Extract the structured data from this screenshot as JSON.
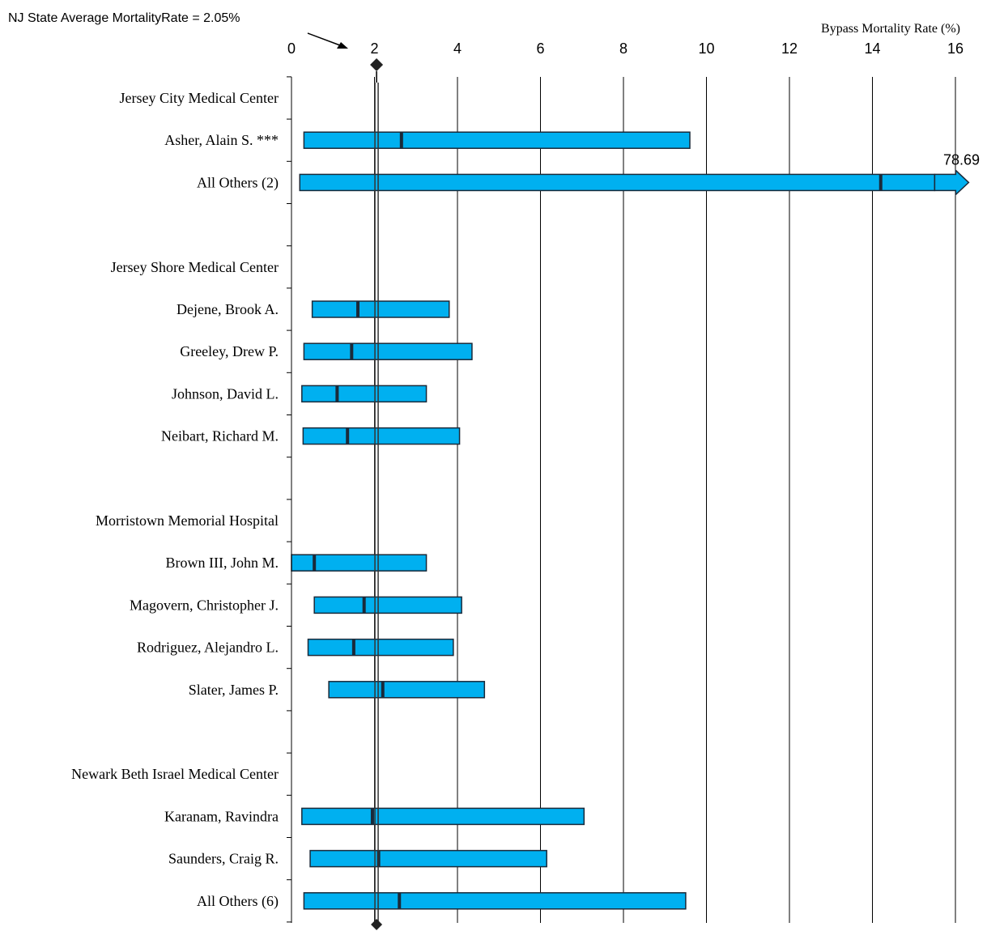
{
  "annotation": {
    "state_average_label": "NJ State Average MortalityRate = 2.05%"
  },
  "chart_data": {
    "type": "bar",
    "orientation": "horizontal",
    "subtype": "confidence-interval",
    "xlabel": "Bypass Mortality Rate (%)",
    "xlim": [
      0,
      16
    ],
    "xticks": [
      0,
      2,
      4,
      6,
      8,
      10,
      12,
      14,
      16
    ],
    "grid": true,
    "reference_value": 2.05,
    "rows": [
      {
        "label": "Jersey City Medical Center",
        "kind": "hospital"
      },
      {
        "label": "Asher, Alain S. ***",
        "kind": "surgeon",
        "low": 0.3,
        "rate": 2.65,
        "high": 9.6
      },
      {
        "label": "All Others (2)",
        "kind": "surgeon",
        "low": 0.2,
        "rate": 14.2,
        "high": 78.69,
        "high_label": "78.69"
      },
      {
        "label": "",
        "kind": "spacer"
      },
      {
        "label": "Jersey Shore Medical Center",
        "kind": "hospital"
      },
      {
        "label": "Dejene, Brook A.",
        "kind": "surgeon",
        "low": 0.5,
        "rate": 1.6,
        "high": 3.8
      },
      {
        "label": "Greeley, Drew P.",
        "kind": "surgeon",
        "low": 0.3,
        "rate": 1.45,
        "high": 4.35
      },
      {
        "label": "Johnson, David L.",
        "kind": "surgeon",
        "low": 0.25,
        "rate": 1.1,
        "high": 3.25
      },
      {
        "label": "Neibart, Richard M.",
        "kind": "surgeon",
        "low": 0.28,
        "rate": 1.35,
        "high": 4.05
      },
      {
        "label": "",
        "kind": "spacer"
      },
      {
        "label": "Morristown Memorial Hospital",
        "kind": "hospital"
      },
      {
        "label": "Brown III, John M.",
        "kind": "surgeon",
        "low": 0.0,
        "rate": 0.55,
        "high": 3.25
      },
      {
        "label": "Magovern, Christopher J.",
        "kind": "surgeon",
        "low": 0.55,
        "rate": 1.75,
        "high": 4.1
      },
      {
        "label": "Rodriguez, Alejandro L.",
        "kind": "surgeon",
        "low": 0.4,
        "rate": 1.5,
        "high": 3.9
      },
      {
        "label": "Slater, James P.",
        "kind": "surgeon",
        "low": 0.9,
        "rate": 2.2,
        "high": 4.65
      },
      {
        "label": "",
        "kind": "spacer"
      },
      {
        "label": "Newark Beth Israel Medical Center",
        "kind": "hospital"
      },
      {
        "label": "Karanam, Ravindra",
        "kind": "surgeon",
        "low": 0.25,
        "rate": 1.95,
        "high": 7.05
      },
      {
        "label": "Saunders, Craig R.",
        "kind": "surgeon",
        "low": 0.45,
        "rate": 2.1,
        "high": 6.15
      },
      {
        "label": "All Others (6)",
        "kind": "surgeon",
        "low": 0.3,
        "rate": 2.6,
        "high": 9.5
      }
    ],
    "colors": {
      "bar_fill": "#00b0f0",
      "bar_stroke": "#1a2a3a",
      "axis": "#000000",
      "grid": "#000000",
      "reference_line": "#333333"
    }
  }
}
